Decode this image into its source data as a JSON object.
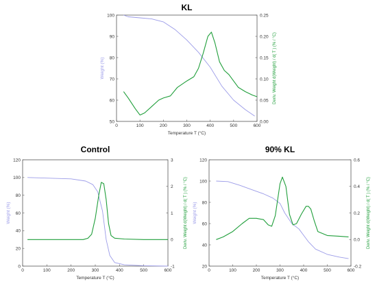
{
  "chart_data": [
    {
      "type": "line",
      "title": "KL",
      "xlabel": "Temperature T (°C)",
      "ylabel": "Weight (%)",
      "y2label": "Deriv. Weight d(Weight) / d( T ) (% / °C)",
      "xlim": [
        0,
        600
      ],
      "ylim": [
        50,
        100
      ],
      "y2lim": [
        0,
        0.25
      ],
      "xticks": [
        "0",
        "100",
        "200",
        "300",
        "400",
        "500",
        "600"
      ],
      "yticks": [
        "50",
        "60",
        "70",
        "80",
        "90",
        "100"
      ],
      "y2ticks": [
        "0.00",
        "0.05",
        "0.10",
        "0.15",
        "0.20",
        "0.25"
      ],
      "series": [
        {
          "color": "#9b9be8",
          "axis": "left",
          "x": [
            30,
            50,
            100,
            150,
            200,
            250,
            300,
            350,
            400,
            450,
            500,
            550,
            590
          ],
          "y": [
            100,
            99.2,
            98.7,
            98.2,
            96.8,
            93.2,
            88.3,
            82.5,
            75.5,
            66.5,
            60,
            55.5,
            52.5
          ]
        },
        {
          "color": "#1f9e3a",
          "axis": "right",
          "x": [
            30,
            50,
            80,
            100,
            120,
            150,
            180,
            200,
            230,
            260,
            300,
            330,
            350,
            370,
            390,
            405,
            420,
            440,
            460,
            480,
            500,
            520,
            550,
            580,
            600
          ],
          "y": [
            0.07,
            0.055,
            0.03,
            0.015,
            0.02,
            0.035,
            0.05,
            0.055,
            0.06,
            0.08,
            0.095,
            0.105,
            0.125,
            0.16,
            0.2,
            0.21,
            0.185,
            0.14,
            0.12,
            0.11,
            0.095,
            0.08,
            0.07,
            0.062,
            0.058
          ]
        }
      ]
    },
    {
      "type": "line",
      "title": "Control",
      "xlabel": "Temperature T (°C)",
      "ylabel": "Weight (%)",
      "y2label": "Deriv. Weight d(Weight) / d( T ) (% / °C)",
      "xlim": [
        0,
        600
      ],
      "ylim": [
        0,
        120
      ],
      "y2lim": [
        -1,
        3
      ],
      "xticks": [
        "0",
        "100",
        "200",
        "300",
        "400",
        "500",
        "600"
      ],
      "yticks": [
        "0",
        "20",
        "40",
        "60",
        "80",
        "100",
        "120"
      ],
      "y2ticks": [
        "-1",
        "0",
        "1",
        "2",
        "3"
      ],
      "series": [
        {
          "color": "#9b9be8",
          "axis": "left",
          "x": [
            20,
            100,
            200,
            260,
            290,
            310,
            330,
            345,
            360,
            380,
            420,
            500,
            600
          ],
          "y": [
            100,
            99.3,
            98.5,
            96,
            92,
            84,
            62,
            30,
            12,
            4,
            1.5,
            0.5,
            0
          ]
        },
        {
          "color": "#1f9e3a",
          "axis": "right",
          "x": [
            20,
            100,
            200,
            250,
            270,
            285,
            300,
            315,
            325,
            335,
            345,
            355,
            365,
            380,
            420,
            500,
            600
          ],
          "y": [
            0,
            0,
            0,
            0,
            0.05,
            0.2,
            0.8,
            1.7,
            2.15,
            2.1,
            1.5,
            0.6,
            0.15,
            0.05,
            0.02,
            0,
            0
          ]
        }
      ]
    },
    {
      "type": "line",
      "title": "90% KL",
      "xlabel": "Temperature T (°C)",
      "ylabel": "Weight (%)",
      "y2label": "Deriv. Weight d(Weight) / d( T ) (% / °C)",
      "xlim": [
        0,
        600
      ],
      "ylim": [
        20,
        120
      ],
      "y2lim": [
        -0.2,
        0.6
      ],
      "xticks": [
        "0",
        "100",
        "200",
        "300",
        "400",
        "500",
        "600"
      ],
      "yticks": [
        "20",
        "40",
        "60",
        "80",
        "100",
        "120"
      ],
      "y2ticks": [
        "-0.2",
        "0.0",
        "0.2",
        "0.4",
        "0.6"
      ],
      "series": [
        {
          "color": "#9b9be8",
          "axis": "left",
          "x": [
            30,
            80,
            130,
            180,
            230,
            270,
            300,
            320,
            350,
            380,
            400,
            420,
            450,
            500,
            550,
            590
          ],
          "y": [
            100,
            99.5,
            96,
            92,
            88,
            84,
            79,
            70,
            60,
            55,
            49,
            43,
            36,
            31,
            28.5,
            27
          ]
        },
        {
          "color": "#1f9e3a",
          "axis": "right",
          "x": [
            30,
            60,
            100,
            140,
            170,
            200,
            230,
            250,
            265,
            280,
            300,
            310,
            325,
            340,
            355,
            370,
            390,
            410,
            420,
            430,
            445,
            460,
            500,
            550,
            590
          ],
          "y": [
            0,
            0.02,
            0.06,
            0.12,
            0.16,
            0.16,
            0.15,
            0.11,
            0.1,
            0.18,
            0.42,
            0.47,
            0.4,
            0.19,
            0.11,
            0.12,
            0.19,
            0.25,
            0.25,
            0.23,
            0.14,
            0.06,
            0.03,
            0.025,
            0.02
          ]
        }
      ]
    }
  ]
}
